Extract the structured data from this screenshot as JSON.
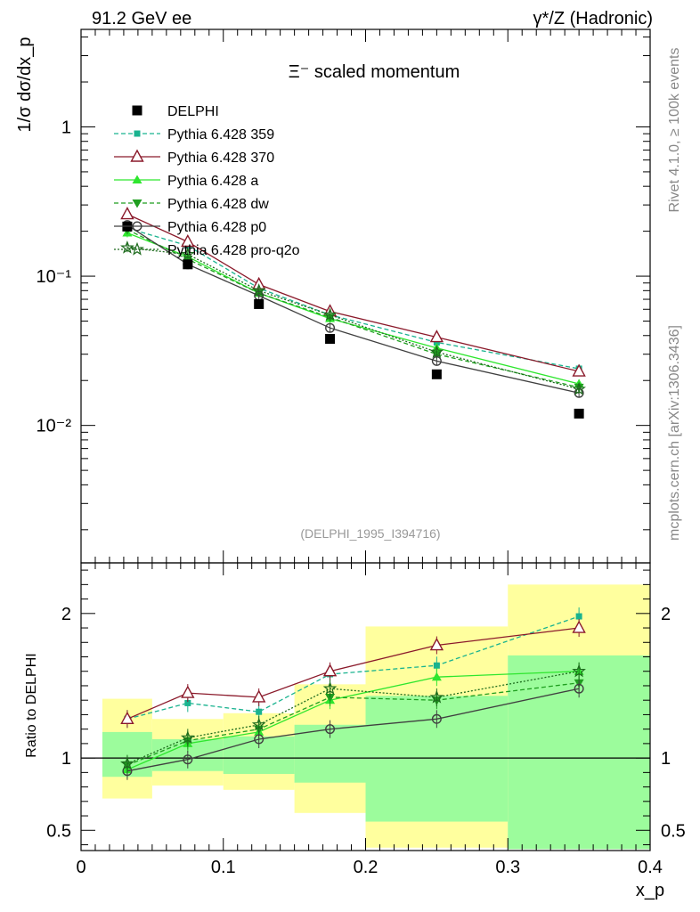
{
  "header": {
    "left": "91.2 GeV ee",
    "right": "γ*/Z (Hadronic)"
  },
  "side_text": {
    "rivet": "Rivet 4.1.0, ≥ 100k events",
    "mcplots": "mcplots.cern.ch [arXiv:1306.3436]"
  },
  "colors": {
    "delphi": "#000000",
    "p359": "#19b38f",
    "p370": "#8b1a2b",
    "pa": "#2ee62e",
    "pdw": "#1f9e1f",
    "pp0": "#404040",
    "pq2o": "#1d6b1d",
    "band_green": "#9cfc9c",
    "band_yellow": "#ffff9e"
  },
  "chart_data": {
    "type": "line",
    "title": "Ξ⁻ scaled momentum",
    "analysis_id": "(DELPHI_1995_I394716)",
    "xlabel": "x_p",
    "ylabel": "1/σ dσ/dx_p",
    "ratio_ylabel": "Ratio to DELPHI",
    "xlim": [
      0,
      0.4
    ],
    "ylim": [
      0.0012,
      4.5
    ],
    "ratio_ylim": [
      0.36,
      2.35
    ],
    "x_ticks": [
      {
        "value": 0,
        "label": "0"
      },
      {
        "value": 0.1,
        "label": "0.1"
      },
      {
        "value": 0.2,
        "label": "0.2"
      },
      {
        "value": 0.3,
        "label": "0.3"
      },
      {
        "value": 0.4,
        "label": "0.4"
      }
    ],
    "y_ticks": [
      {
        "value": 1,
        "label": "1"
      },
      {
        "value": 0.1,
        "label": "10⁻¹"
      },
      {
        "value": 0.01,
        "label": "10⁻²"
      }
    ],
    "ratio_ticks": [
      {
        "value": 0.5,
        "label": "0.5"
      },
      {
        "value": 1,
        "label": "1"
      },
      {
        "value": 2,
        "label": "2"
      }
    ],
    "bins": [
      {
        "lo": 0.015,
        "hi": 0.05
      },
      {
        "lo": 0.05,
        "hi": 0.1
      },
      {
        "lo": 0.1,
        "hi": 0.15
      },
      {
        "lo": 0.15,
        "hi": 0.2
      },
      {
        "lo": 0.2,
        "hi": 0.3
      },
      {
        "lo": 0.3,
        "hi": 0.4
      }
    ],
    "x": [
      0.0325,
      0.075,
      0.125,
      0.175,
      0.25,
      0.35
    ],
    "data": {
      "name": "DELPHI",
      "values": [
        0.215,
        0.12,
        0.065,
        0.038,
        0.022,
        0.012
      ],
      "band_green": [
        [
          0.87,
          1.18
        ],
        [
          0.91,
          1.13
        ],
        [
          0.89,
          1.15
        ],
        [
          0.83,
          1.23
        ],
        [
          0.56,
          1.43
        ],
        [
          0.37,
          1.71
        ]
      ],
      "band_yellow": [
        [
          0.72,
          1.41
        ],
        [
          0.81,
          1.27
        ],
        [
          0.78,
          1.31
        ],
        [
          0.62,
          1.51
        ],
        [
          0.38,
          1.91
        ],
        [
          0.38,
          2.2
        ]
      ]
    },
    "series": [
      {
        "name": "Pythia 6.428 359",
        "key": "p359",
        "style": "dashed",
        "marker": "square-small",
        "values": [
          0.21,
          0.16,
          0.083,
          0.055,
          0.036,
          0.024
        ],
        "ratio": [
          1.27,
          1.38,
          1.32,
          1.58,
          1.64,
          1.98
        ]
      },
      {
        "name": "Pythia 6.428 370",
        "key": "p370",
        "style": "solid",
        "marker": "triangle-open",
        "values": [
          0.26,
          0.17,
          0.088,
          0.058,
          0.039,
          0.023
        ],
        "ratio": [
          1.27,
          1.45,
          1.42,
          1.6,
          1.78,
          1.9
        ]
      },
      {
        "name": "Pythia 6.428 a",
        "key": "pa",
        "style": "solid",
        "marker": "triangle",
        "values": [
          0.195,
          0.135,
          0.077,
          0.052,
          0.033,
          0.019
        ],
        "ratio": [
          0.92,
          1.1,
          1.18,
          1.4,
          1.56,
          1.6
        ]
      },
      {
        "name": "Pythia 6.428 dw",
        "key": "pdw",
        "style": "dashed",
        "marker": "triangle-down",
        "values": [
          0.205,
          0.13,
          0.077,
          0.053,
          0.03,
          0.018
        ],
        "ratio": [
          0.95,
          1.12,
          1.2,
          1.42,
          1.4,
          1.52
        ]
      },
      {
        "name": "Pythia 6.428 p0",
        "key": "pp0",
        "style": "solid",
        "marker": "circle-open",
        "values": [
          0.22,
          0.12,
          0.074,
          0.045,
          0.027,
          0.0165
        ],
        "ratio": [
          0.91,
          0.99,
          1.13,
          1.2,
          1.27,
          1.48
        ]
      },
      {
        "name": "Pythia 6.428 pro-q2o",
        "key": "pq2o",
        "style": "dotted",
        "marker": "star",
        "values": [
          0.155,
          0.14,
          0.08,
          0.055,
          0.031,
          0.0175
        ],
        "ratio": [
          0.96,
          1.14,
          1.23,
          1.48,
          1.42,
          1.6
        ]
      }
    ]
  }
}
